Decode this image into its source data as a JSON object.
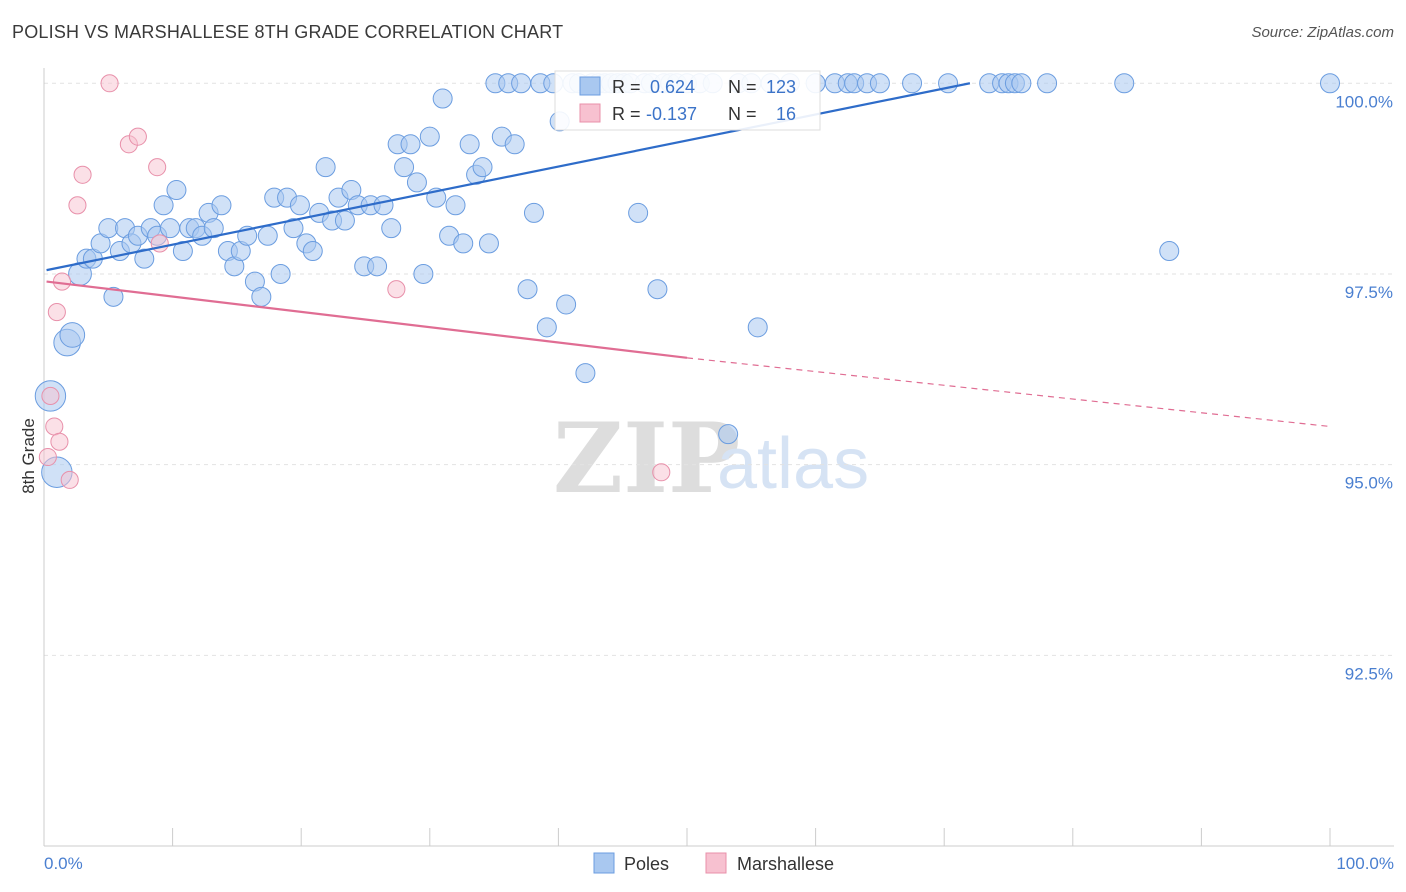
{
  "title": "POLISH VS MARSHALLESE 8TH GRADE CORRELATION CHART",
  "source": "Source: ZipAtlas.com",
  "chart_data": {
    "type": "scatter",
    "ylabel": "8th Grade",
    "xlim": [
      0,
      100
    ],
    "ylim": [
      90.0,
      100.2
    ],
    "y_ticks": [
      {
        "value": 100.0,
        "label": "100.0%"
      },
      {
        "value": 97.5,
        "label": "97.5%"
      },
      {
        "value": 95.0,
        "label": "95.0%"
      },
      {
        "value": 92.5,
        "label": "92.5%"
      }
    ],
    "x_tick_labels": {
      "left": "0.0%",
      "right": "100.0%"
    },
    "grid": true,
    "legend_position": "bottom-center",
    "stats_box": [
      {
        "r_label": "R =",
        "r": "0.624",
        "n_label": "N =",
        "n": "123",
        "color": "#a9c8f0",
        "border": "#6b9de0"
      },
      {
        "r_label": "R =",
        "r": "-0.137",
        "n_label": "N =",
        "n": "16",
        "color": "#f7c1d0",
        "border": "#e890aa"
      }
    ],
    "series": [
      {
        "name": "Poles",
        "color": "#a9c8f0",
        "stroke": "#6b9de0",
        "trend": {
          "x0": 0.2,
          "y0": 97.55,
          "x1": 72,
          "y1": 100.0,
          "color": "#2e6cc9"
        },
        "points": [
          [
            0.5,
            95.9,
            1.6
          ],
          [
            1.0,
            94.9,
            1.6
          ],
          [
            1.8,
            96.6,
            1.4
          ],
          [
            2.2,
            96.7,
            1.3
          ],
          [
            2.8,
            97.5,
            1.2
          ],
          [
            3.3,
            97.7,
            1.0
          ],
          [
            3.8,
            97.7,
            1.0
          ],
          [
            4.4,
            97.9,
            1.0
          ],
          [
            5.0,
            98.1,
            1.0
          ],
          [
            5.4,
            97.2,
            1.0
          ],
          [
            5.9,
            97.8,
            1.0
          ],
          [
            6.3,
            98.1,
            1.0
          ],
          [
            6.8,
            97.9,
            1.0
          ],
          [
            7.3,
            98.0,
            1.0
          ],
          [
            7.8,
            97.7,
            1.0
          ],
          [
            8.3,
            98.1,
            1.0
          ],
          [
            8.8,
            98.0,
            1.0
          ],
          [
            9.3,
            98.4,
            1.0
          ],
          [
            9.8,
            98.1,
            1.0
          ],
          [
            10.3,
            98.6,
            1.0
          ],
          [
            10.8,
            97.8,
            1.0
          ],
          [
            11.3,
            98.1,
            1.0
          ],
          [
            11.8,
            98.1,
            1.0
          ],
          [
            12.3,
            98.0,
            1.0
          ],
          [
            12.8,
            98.3,
            1.0
          ],
          [
            13.2,
            98.1,
            1.0
          ],
          [
            13.8,
            98.4,
            1.0
          ],
          [
            14.3,
            97.8,
            1.0
          ],
          [
            14.8,
            97.6,
            1.0
          ],
          [
            15.3,
            97.8,
            1.0
          ],
          [
            15.8,
            98.0,
            1.0
          ],
          [
            16.4,
            97.4,
            1.0
          ],
          [
            16.9,
            97.2,
            1.0
          ],
          [
            17.4,
            98.0,
            1.0
          ],
          [
            17.9,
            98.5,
            1.0
          ],
          [
            18.4,
            97.5,
            1.0
          ],
          [
            18.9,
            98.5,
            1.0
          ],
          [
            19.4,
            98.1,
            1.0
          ],
          [
            19.9,
            98.4,
            1.0
          ],
          [
            20.4,
            97.9,
            1.0
          ],
          [
            20.9,
            97.8,
            1.0
          ],
          [
            21.4,
            98.3,
            1.0
          ],
          [
            21.9,
            98.9,
            1.0
          ],
          [
            22.4,
            98.2,
            1.0
          ],
          [
            22.9,
            98.5,
            1.0
          ],
          [
            23.4,
            98.2,
            1.0
          ],
          [
            23.9,
            98.6,
            1.0
          ],
          [
            24.4,
            98.4,
            1.0
          ],
          [
            24.9,
            97.6,
            1.0
          ],
          [
            25.4,
            98.4,
            1.0
          ],
          [
            25.9,
            97.6,
            1.0
          ],
          [
            26.4,
            98.4,
            1.0
          ],
          [
            27.0,
            98.1,
            1.0
          ],
          [
            27.5,
            99.2,
            1.0
          ],
          [
            28.0,
            98.9,
            1.0
          ],
          [
            28.5,
            99.2,
            1.0
          ],
          [
            29.0,
            98.7,
            1.0
          ],
          [
            29.5,
            97.5,
            1.0
          ],
          [
            30.0,
            99.3,
            1.0
          ],
          [
            30.5,
            98.5,
            1.0
          ],
          [
            31.0,
            99.8,
            1.0
          ],
          [
            31.5,
            98.0,
            1.0
          ],
          [
            32.0,
            98.4,
            1.0
          ],
          [
            32.6,
            97.9,
            1.0
          ],
          [
            33.1,
            99.2,
            1.0
          ],
          [
            33.6,
            98.8,
            1.0
          ],
          [
            34.1,
            98.9,
            1.0
          ],
          [
            34.6,
            97.9,
            1.0
          ],
          [
            35.1,
            100.0,
            1.0
          ],
          [
            35.6,
            99.3,
            1.0
          ],
          [
            36.1,
            100.0,
            1.0
          ],
          [
            36.6,
            99.2,
            1.0
          ],
          [
            37.1,
            100.0,
            1.0
          ],
          [
            37.6,
            97.3,
            1.0
          ],
          [
            38.1,
            98.3,
            1.0
          ],
          [
            38.6,
            100.0,
            1.0
          ],
          [
            39.1,
            96.8,
            1.0
          ],
          [
            39.6,
            100.0,
            1.0
          ],
          [
            40.1,
            99.5,
            1.0
          ],
          [
            40.6,
            97.1,
            1.0
          ],
          [
            41.1,
            100.0,
            1.0
          ],
          [
            41.6,
            100.0,
            1.0
          ],
          [
            42.1,
            96.2,
            1.0
          ],
          [
            42.6,
            100.0,
            1.0
          ],
          [
            43.1,
            100.0,
            1.0
          ],
          [
            43.6,
            100.0,
            1.0
          ],
          [
            44.1,
            100.0,
            1.0
          ],
          [
            44.6,
            100.0,
            1.0
          ],
          [
            45.1,
            100.0,
            1.0
          ],
          [
            45.6,
            100.0,
            1.0
          ],
          [
            46.2,
            98.3,
            1.0
          ],
          [
            46.7,
            100.0,
            1.0
          ],
          [
            47.2,
            100.0,
            1.0
          ],
          [
            47.7,
            97.3,
            1.0
          ],
          [
            48.2,
            100.0,
            1.0
          ],
          [
            48.7,
            100.0,
            1.0
          ],
          [
            49.2,
            100.0,
            1.0
          ],
          [
            50.0,
            100.0,
            1.0
          ],
          [
            51.0,
            100.0,
            1.0
          ],
          [
            52.0,
            100.0,
            1.0
          ],
          [
            53.2,
            95.4,
            1.0
          ],
          [
            54.0,
            100.0,
            1.0
          ],
          [
            55.0,
            100.0,
            1.0
          ],
          [
            55.5,
            96.8,
            1.0
          ],
          [
            56.5,
            100.0,
            1.0
          ],
          [
            58.0,
            100.0,
            1.0
          ],
          [
            60.0,
            100.0,
            1.0
          ],
          [
            61.5,
            100.0,
            1.0
          ],
          [
            62.5,
            100.0,
            1.0
          ],
          [
            63.0,
            100.0,
            1.0
          ],
          [
            64.0,
            100.0,
            1.0
          ],
          [
            65.0,
            100.0,
            1.0
          ],
          [
            67.5,
            100.0,
            1.0
          ],
          [
            70.3,
            100.0,
            1.0
          ],
          [
            73.5,
            100.0,
            1.0
          ],
          [
            74.5,
            100.0,
            1.0
          ],
          [
            75.0,
            100.0,
            1.0
          ],
          [
            75.5,
            100.0,
            1.0
          ],
          [
            76.0,
            100.0,
            1.0
          ],
          [
            78.0,
            100.0,
            1.0
          ],
          [
            84.0,
            100.0,
            1.0
          ],
          [
            87.5,
            97.8,
            1.0
          ],
          [
            100.0,
            100.0,
            1.0
          ]
        ]
      },
      {
        "name": "Marshallese",
        "color": "#f7c1d0",
        "stroke": "#e890aa",
        "trend": {
          "x0": 0.2,
          "y0": 97.4,
          "x1": 50.0,
          "y1": 96.4,
          "dash_x1": 100.0,
          "dash_y1": 95.5,
          "color": "#e06d93"
        },
        "points": [
          [
            0.3,
            95.1,
            0.9
          ],
          [
            0.5,
            95.9,
            0.9
          ],
          [
            0.8,
            95.5,
            0.9
          ],
          [
            1.0,
            97.0,
            0.9
          ],
          [
            1.2,
            95.3,
            0.9
          ],
          [
            1.4,
            97.4,
            0.9
          ],
          [
            2.0,
            94.8,
            0.9
          ],
          [
            2.6,
            98.4,
            0.9
          ],
          [
            3.0,
            98.8,
            0.9
          ],
          [
            5.1,
            100.0,
            0.9
          ],
          [
            6.6,
            99.2,
            0.9
          ],
          [
            7.3,
            99.3,
            0.9
          ],
          [
            8.8,
            98.9,
            0.9
          ],
          [
            9.0,
            97.9,
            0.9
          ],
          [
            27.4,
            97.3,
            0.9
          ],
          [
            48.0,
            94.9,
            0.9
          ]
        ]
      }
    ]
  }
}
